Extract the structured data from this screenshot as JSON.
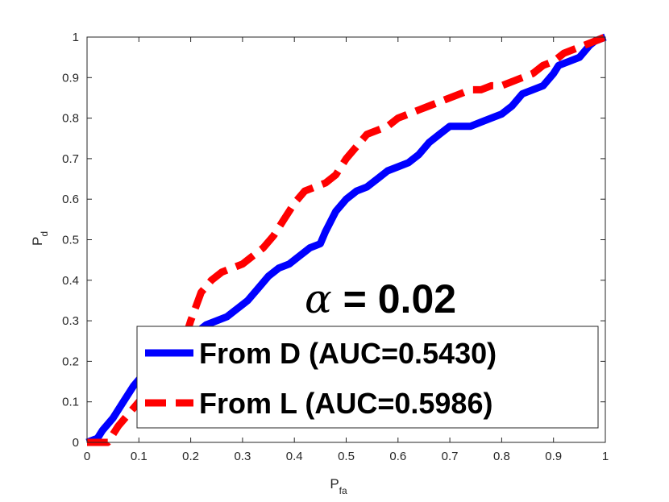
{
  "chart_data": {
    "type": "line",
    "title": "",
    "xlabel": "P",
    "xlabel_sub": "fa",
    "ylabel": "P",
    "ylabel_sub": "d",
    "xlim": [
      0,
      1
    ],
    "ylim": [
      0,
      1
    ],
    "xticks": [
      "0",
      "0.1",
      "0.2",
      "0.3",
      "0.4",
      "0.5",
      "0.6",
      "0.7",
      "0.8",
      "0.9",
      "1"
    ],
    "yticks": [
      "0",
      "0.1",
      "0.2",
      "0.3",
      "0.4",
      "0.5",
      "0.6",
      "0.7",
      "0.8",
      "0.9",
      "1"
    ],
    "grid": false,
    "legend_position": "bottom-right",
    "annotation": {
      "symbol": "α",
      "text": " = 0.02"
    },
    "series": [
      {
        "name": "From D (AUC=0.5430)",
        "color": "#0000ff",
        "style": "solid",
        "x": [
          0.0,
          0.02,
          0.03,
          0.05,
          0.07,
          0.09,
          0.11,
          0.13,
          0.15,
          0.17,
          0.19,
          0.21,
          0.23,
          0.25,
          0.27,
          0.29,
          0.31,
          0.33,
          0.35,
          0.37,
          0.39,
          0.41,
          0.43,
          0.45,
          0.46,
          0.48,
          0.5,
          0.52,
          0.54,
          0.56,
          0.58,
          0.6,
          0.62,
          0.64,
          0.66,
          0.68,
          0.7,
          0.72,
          0.74,
          0.76,
          0.78,
          0.8,
          0.82,
          0.84,
          0.86,
          0.88,
          0.9,
          0.91,
          0.93,
          0.95,
          0.97,
          0.98,
          1.0
        ],
        "y": [
          0.0,
          0.01,
          0.03,
          0.06,
          0.1,
          0.14,
          0.17,
          0.19,
          0.21,
          0.23,
          0.25,
          0.27,
          0.29,
          0.3,
          0.31,
          0.33,
          0.35,
          0.38,
          0.41,
          0.43,
          0.44,
          0.46,
          0.48,
          0.49,
          0.52,
          0.57,
          0.6,
          0.62,
          0.63,
          0.65,
          0.67,
          0.68,
          0.69,
          0.71,
          0.74,
          0.76,
          0.78,
          0.78,
          0.78,
          0.79,
          0.8,
          0.81,
          0.83,
          0.86,
          0.87,
          0.88,
          0.91,
          0.93,
          0.94,
          0.95,
          0.98,
          0.99,
          1.0
        ]
      },
      {
        "name": "From L (AUC=0.5986)",
        "color": "#ff0000",
        "style": "dashed",
        "x": [
          0.0,
          0.04,
          0.06,
          0.08,
          0.1,
          0.13,
          0.15,
          0.18,
          0.2,
          0.22,
          0.24,
          0.26,
          0.28,
          0.3,
          0.32,
          0.34,
          0.36,
          0.38,
          0.4,
          0.42,
          0.44,
          0.46,
          0.48,
          0.5,
          0.52,
          0.54,
          0.56,
          0.58,
          0.6,
          0.62,
          0.64,
          0.66,
          0.68,
          0.7,
          0.72,
          0.74,
          0.76,
          0.78,
          0.8,
          0.82,
          0.84,
          0.86,
          0.88,
          0.9,
          0.92,
          0.94,
          0.96,
          0.98,
          1.0
        ],
        "y": [
          0.0,
          0.0,
          0.04,
          0.07,
          0.1,
          0.13,
          0.17,
          0.22,
          0.3,
          0.37,
          0.4,
          0.42,
          0.43,
          0.44,
          0.46,
          0.48,
          0.51,
          0.55,
          0.59,
          0.62,
          0.63,
          0.64,
          0.66,
          0.7,
          0.73,
          0.76,
          0.77,
          0.78,
          0.8,
          0.81,
          0.82,
          0.83,
          0.84,
          0.85,
          0.86,
          0.87,
          0.87,
          0.88,
          0.88,
          0.89,
          0.9,
          0.91,
          0.93,
          0.94,
          0.96,
          0.97,
          0.98,
          0.99,
          1.0
        ]
      }
    ]
  }
}
